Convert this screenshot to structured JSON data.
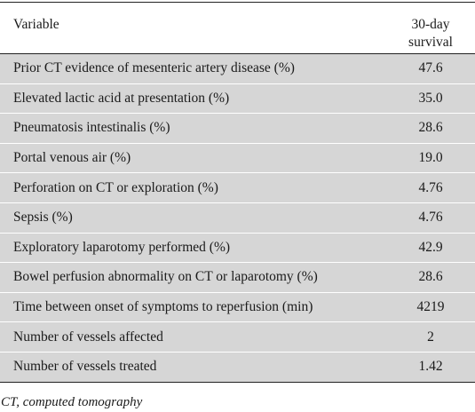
{
  "table": {
    "header": {
      "variable": "Variable",
      "value_line1": "30-day",
      "value_line2": "survival"
    },
    "rows": [
      {
        "label": "Prior CT evidence of mesenteric artery disease (%)",
        "value": "47.6"
      },
      {
        "label": "Elevated lactic acid at presentation (%)",
        "value": "35.0"
      },
      {
        "label": "Pneumatosis intestinalis (%)",
        "value": "28.6"
      },
      {
        "label": "Portal venous air (%)",
        "value": "19.0"
      },
      {
        "label": "Perforation on CT or exploration (%)",
        "value": "4.76"
      },
      {
        "label": "Sepsis (%)",
        "value": "4.76"
      },
      {
        "label": "Exploratory laparotomy performed (%)",
        "value": "42.9"
      },
      {
        "label": "Bowel perfusion abnormality on CT or laparotomy (%)",
        "value": "28.6"
      },
      {
        "label": "Time between onset of symptoms to reperfusion (min)",
        "value": "4219"
      },
      {
        "label": "Number of vessels affected",
        "value": "2"
      },
      {
        "label": "Number of vessels treated",
        "value": "1.42"
      }
    ],
    "row_shade_color": "#d6d6d6"
  },
  "footnote": "CT, computed tomography"
}
